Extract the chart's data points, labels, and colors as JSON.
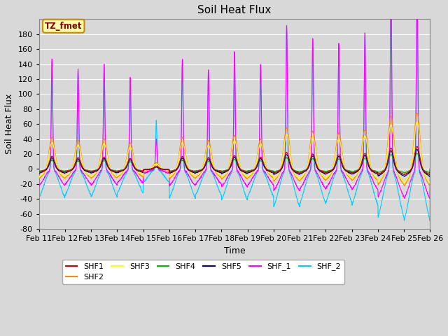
{
  "title": "Soil Heat Flux",
  "xlabel": "Time",
  "ylabel": "Soil Heat Flux",
  "ylim": [
    -80,
    200
  ],
  "yticks": [
    -80,
    -60,
    -40,
    -20,
    0,
    20,
    40,
    60,
    80,
    100,
    120,
    140,
    160,
    180
  ],
  "xtick_labels": [
    "Feb 11",
    "Feb 12",
    "Feb 13",
    "Feb 14",
    "Feb 15",
    "Feb 16",
    "Feb 17",
    "Feb 18",
    "Feb 19",
    "Feb 20",
    "Feb 21",
    "Feb 22",
    "Feb 23",
    "Feb 24",
    "Feb 25",
    "Feb 26"
  ],
  "legend_entries": [
    "SHF1",
    "SHF2",
    "SHF3",
    "SHF4",
    "SHF5",
    "SHF_1",
    "SHF_2"
  ],
  "legend_colors": [
    "#cc0000",
    "#ff8800",
    "#ffff00",
    "#00bb00",
    "#000099",
    "#ff00ff",
    "#00ccff"
  ],
  "annotation_text": "TZ_fmet",
  "annotation_box_color": "#ffffaa",
  "annotation_border_color": "#cc8800",
  "fig_bg_color": "#d8d8d8",
  "plot_bg_color": "#d8d8d8",
  "grid_color": "#ffffff",
  "n_days": 15,
  "points_per_day": 144,
  "legend_ncol_row1": 6,
  "legend_ncol_row2": 1
}
